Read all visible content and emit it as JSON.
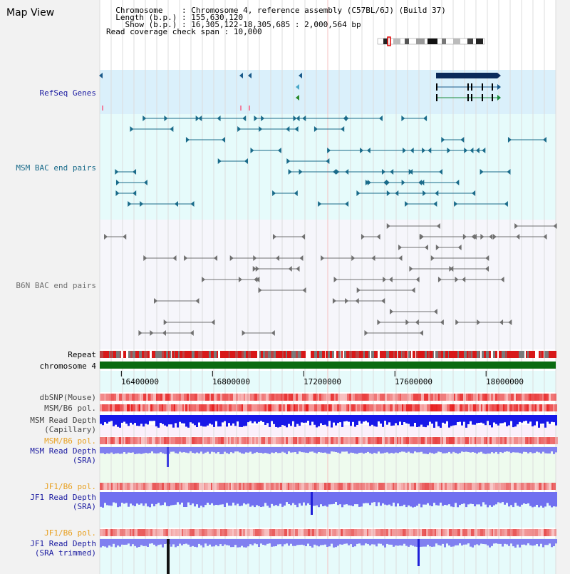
{
  "view_title": "Map View",
  "header": {
    "rows": [
      {
        "key": "  Chromosome    ",
        "value": "Chromosome 4, reference assembly (C57BL/6J) (Build 37)"
      },
      {
        "key": "  Length (b.p.) ",
        "value": "155,630,120"
      },
      {
        "key": "    Show (b.p.) ",
        "value": "16,305,122-18,305,685 : 2,000,564 bp"
      },
      {
        "key": "Read coverage check span ",
        "value": "10,000"
      }
    ]
  },
  "tracks": {
    "refseq": {
      "label": "RefSeq Genes",
      "color": "#1a1aa0"
    },
    "msm_bac": {
      "label": "MSM BAC end pairs",
      "color": "#1a6b8a"
    },
    "b6n_bac": {
      "label": "B6N BAC end pairs",
      "color": "#707070"
    },
    "repeat": {
      "label": "Repeat"
    },
    "chromosome": {
      "label": "chromosome 4"
    },
    "dbsnp": {
      "label": "dbSNP(Mouse)"
    },
    "msm_b6_pol_1": {
      "label": "MSM/B6 pol."
    },
    "msm_depth_cap": {
      "label": "MSM Read Depth",
      "label2": "(Capillary)"
    },
    "msm_b6_pol_2": {
      "label": "MSM/B6 pol.",
      "color": "#e8a020"
    },
    "msm_depth_sra": {
      "label": "MSM Read Depth",
      "label2": "(SRA)",
      "color": "#1a1aa0"
    },
    "jf1_b6_pol_1": {
      "label": "JF1/B6 pol.",
      "color": "#e8a020"
    },
    "jf1_depth_sra": {
      "label": "JF1 Read Depth",
      "label2": "(SRA)",
      "color": "#1a1aa0"
    },
    "jf1_b6_pol_2": {
      "label": "JF1/B6 pol.",
      "color": "#e8a020"
    },
    "jf1_depth_trim": {
      "label": "JF1 Read Depth",
      "label2": "(SRA trimmed)",
      "color": "#1a1aa0"
    }
  },
  "ruler": {
    "range_bp": [
      16305122,
      18305685
    ],
    "ticks": [
      "16400000",
      "16800000",
      "17200000",
      "17600000",
      "18000000"
    ],
    "tick_values": [
      16400000,
      16800000,
      17200000,
      17600000,
      18000000
    ]
  }
}
